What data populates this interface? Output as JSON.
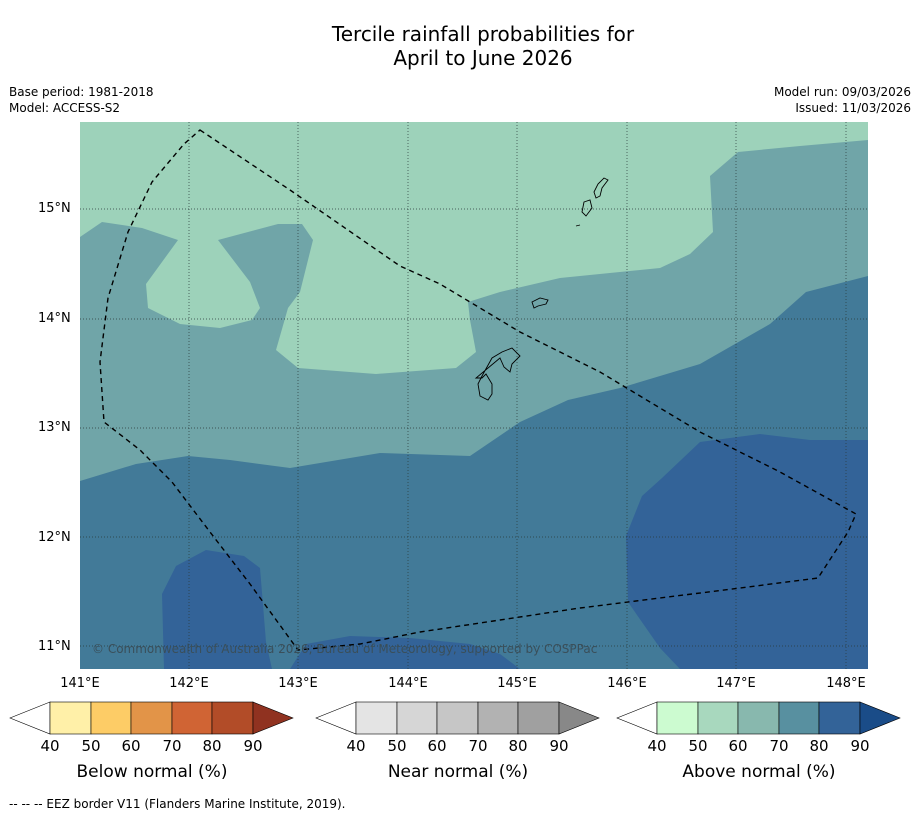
{
  "title_line1": "Tercile rainfall probabilities for",
  "title_line2": "April to June 2026",
  "meta": {
    "base_period": "Base period: 1981-2018",
    "model": "Model: ACCESS-S2",
    "model_run": "Model run: 09/03/2026",
    "issued": "Issued: 11/03/2026"
  },
  "axes": {
    "lat_labels": [
      "15°N",
      "14°N",
      "13°N",
      "12°N",
      "11°N"
    ],
    "lon_labels": [
      "141°E",
      "142°E",
      "143°E",
      "144°E",
      "145°E",
      "146°E",
      "147°E",
      "148°E"
    ]
  },
  "copyright": "© Commonwealth of Australia 2026, Bureau of Meteorology, supported by COSPPac",
  "legend": {
    "ticks": [
      "40",
      "50",
      "60",
      "70",
      "80",
      "90"
    ],
    "below_title": "Below normal (%)",
    "near_title": "Near normal (%)",
    "above_title": "Above normal (%)",
    "below_colors": [
      "#fff0a8",
      "#fdcc66",
      "#e29448",
      "#d06434",
      "#b24c28",
      "#903220"
    ],
    "near_colors": [
      "#e4e4e4",
      "#d6d6d6",
      "#c6c6c6",
      "#b2b2b2",
      "#a0a0a0",
      "#888888"
    ],
    "above_colors": [
      "#ccfbd0",
      "#a8d8be",
      "#88b8ae",
      "#5890a0",
      "#336398",
      "#1a4c88"
    ]
  },
  "map_colors": {
    "level_40_50": "#9dd2ba",
    "level_50_60": "#70a5a8",
    "level_60_70": "#427a98",
    "level_70_80": "#336398"
  },
  "footer": "--  --  -- EEZ border V11 (Flanders Marine Institute, 2019)."
}
